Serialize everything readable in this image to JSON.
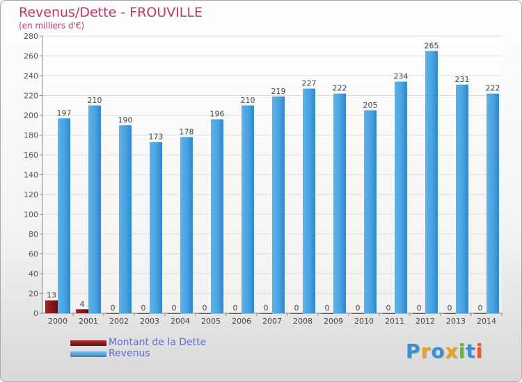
{
  "chart_data": {
    "type": "bar",
    "title": "Revenus/Dette - FROUVILLE",
    "subtitle": "(en milliers d'€)",
    "categories": [
      "2000",
      "2001",
      "2002",
      "2003",
      "2004",
      "2005",
      "2006",
      "2007",
      "2008",
      "2009",
      "2010",
      "2011",
      "2012",
      "2013",
      "2014"
    ],
    "series": [
      {
        "name": "Montant de la Dette",
        "color": "#8b1a1a",
        "values": [
          13,
          4,
          0,
          0,
          0,
          0,
          0,
          0,
          0,
          0,
          0,
          0,
          0,
          0,
          0
        ]
      },
      {
        "name": "Revenus",
        "color": "#4fa3e0",
        "values": [
          197,
          210,
          190,
          173,
          178,
          196,
          210,
          219,
          227,
          222,
          205,
          234,
          265,
          231,
          222
        ]
      }
    ],
    "ylim": [
      0,
      280
    ],
    "yticks": [
      0,
      20,
      40,
      60,
      80,
      100,
      120,
      140,
      160,
      180,
      200,
      220,
      240,
      260,
      280
    ],
    "grid": true,
    "legend_position": "bottom-left"
  },
  "logo": {
    "letters": [
      {
        "char": "P",
        "color": "#3b8fd6"
      },
      {
        "char": "r",
        "color": "#e8a21b"
      },
      {
        "char": "o",
        "color": "#3b8fd6"
      },
      {
        "char": "x",
        "color": "#e8a21b"
      },
      {
        "char": "i",
        "color": "#6fb632"
      },
      {
        "char": "t",
        "color": "#3b8fd6"
      },
      {
        "char": "i",
        "color": "#e85a2a"
      }
    ]
  }
}
